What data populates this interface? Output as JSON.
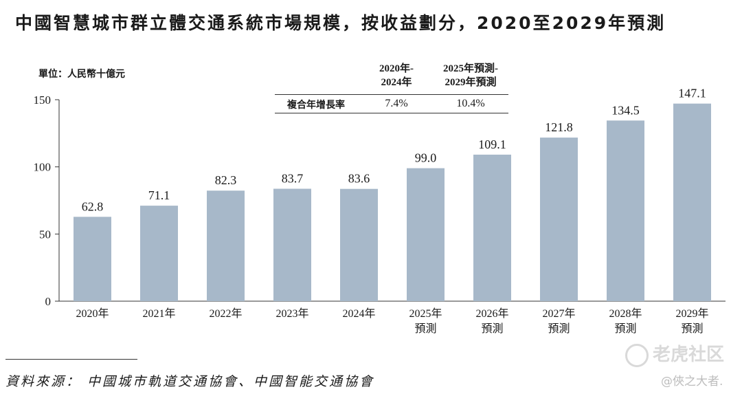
{
  "title": "中國智慧城市群立體交通系統市場規模，按收益劃分，2020至2029年預測",
  "unit_label": "單位：人民幣十億元",
  "cagr_table": {
    "col1_line1": "2020年-",
    "col1_line2": "2024年",
    "col2_line1": "2025年預測-",
    "col2_line2": "2029年預測",
    "row_label": "複合年增長率",
    "col1_value": "7.4%",
    "col2_value": "10.4%"
  },
  "chart_data": {
    "type": "bar",
    "title": "中國智慧城市群立體交通系統市場規模，按收益劃分，2020至2029年預測",
    "ylabel": "單位：人民幣十億元",
    "xlabel": "",
    "ylim": [
      0,
      150
    ],
    "yticks": [
      0,
      50,
      100,
      150
    ],
    "categories": [
      [
        "2020年"
      ],
      [
        "2021年"
      ],
      [
        "2022年"
      ],
      [
        "2023年"
      ],
      [
        "2024年"
      ],
      [
        "2025年",
        "預測"
      ],
      [
        "2026年",
        "預測"
      ],
      [
        "2027年",
        "預測"
      ],
      [
        "2028年",
        "預測"
      ],
      [
        "2029年",
        "預測"
      ]
    ],
    "values": [
      62.8,
      71.1,
      82.3,
      83.7,
      83.6,
      99.0,
      109.1,
      121.8,
      134.5,
      147.1
    ],
    "value_labels": [
      "62.8",
      "71.1",
      "82.3",
      "83.7",
      "83.6",
      "99.0",
      "109.1",
      "121.8",
      "134.5",
      "147.1"
    ],
    "bar_color": "#a7b8c9",
    "grid": false
  },
  "source": "資料來源：  中國城市軌道交通協會、中國智能交通協會",
  "watermark": "老虎社区",
  "handle": "@俠之大者."
}
